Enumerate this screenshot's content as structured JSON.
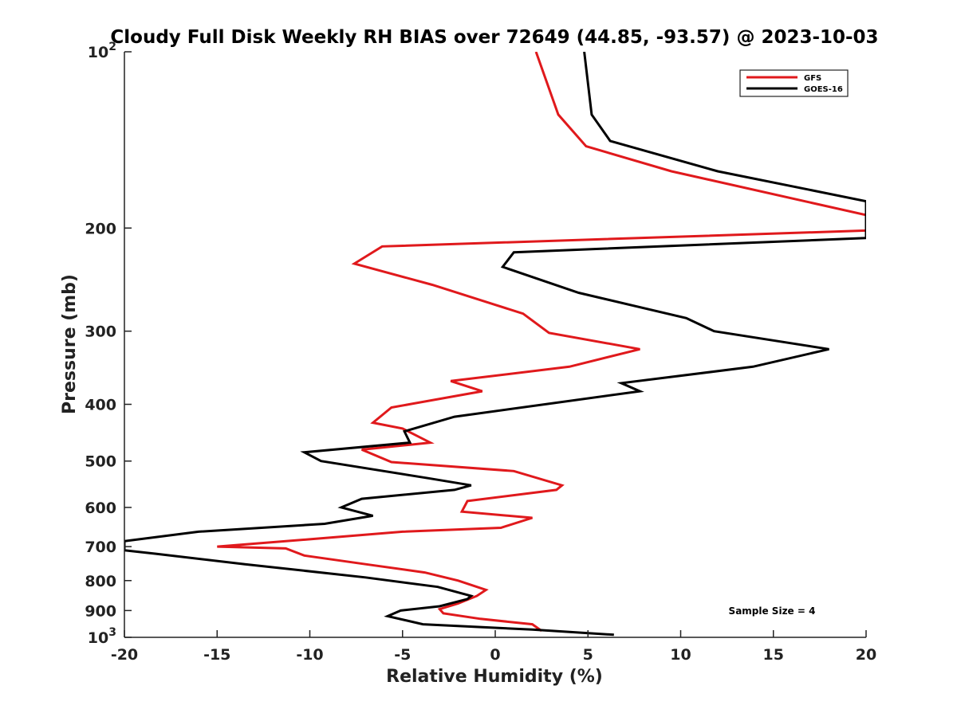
{
  "chart_data": {
    "type": "line",
    "title": "Cloudy Full Disk Weekly RH BIAS over 72649 (44.85, -93.57) @ 2023-10-03",
    "xlabel": "Relative Humidity (%)",
    "ylabel": "Pressure (mb)",
    "xlim": [
      -20,
      20
    ],
    "ylim": [
      1000,
      100
    ],
    "yscale": "log",
    "grid": false,
    "x_ticks": [
      -20,
      -15,
      -10,
      -5,
      0,
      5,
      10,
      15,
      20
    ],
    "x_tick_labels": [
      "-20",
      "-15",
      "-10",
      "-5",
      "0",
      "5",
      "10",
      "15",
      "20"
    ],
    "y_ticks": [
      100,
      200,
      300,
      400,
      500,
      600,
      700,
      800,
      900,
      1000
    ],
    "y_tick_labels": [
      {
        "base": "10",
        "exp": "2"
      },
      {
        "base": "200",
        "exp": ""
      },
      {
        "base": "300",
        "exp": ""
      },
      {
        "base": "400",
        "exp": ""
      },
      {
        "base": "500",
        "exp": ""
      },
      {
        "base": "600",
        "exp": ""
      },
      {
        "base": "700",
        "exp": ""
      },
      {
        "base": "800",
        "exp": ""
      },
      {
        "base": "900",
        "exp": ""
      },
      {
        "base": "10",
        "exp": "3"
      }
    ],
    "legend_position": "top-right",
    "annotation": "Sample Size = 4",
    "series": [
      {
        "name": "GFS",
        "color": "#e0191c",
        "points": [
          [
            2.5,
            975
          ],
          [
            2.0,
            950
          ],
          [
            -0.8,
            930
          ],
          [
            -2.8,
            910
          ],
          [
            -3.0,
            895
          ],
          [
            -2.0,
            875
          ],
          [
            -1.0,
            850
          ],
          [
            -0.5,
            830
          ],
          [
            -2.0,
            800
          ],
          [
            -3.8,
            775
          ],
          [
            -7.0,
            750
          ],
          [
            -10.3,
            725
          ],
          [
            -11.3,
            705
          ],
          [
            -15.0,
            700
          ],
          [
            -10.0,
            680
          ],
          [
            -5.0,
            660
          ],
          [
            0.3,
            650
          ],
          [
            2.0,
            625
          ],
          [
            -1.8,
            610
          ],
          [
            -1.5,
            585
          ],
          [
            3.3,
            560
          ],
          [
            3.6,
            550
          ],
          [
            1.0,
            520
          ],
          [
            -5.6,
            502
          ],
          [
            -7.2,
            478
          ],
          [
            -3.5,
            465
          ],
          [
            -5.0,
            440
          ],
          [
            -6.6,
            430
          ],
          [
            -5.6,
            405
          ],
          [
            -0.7,
            380
          ],
          [
            -2.4,
            365
          ],
          [
            4.0,
            345
          ],
          [
            7.8,
            322
          ],
          [
            2.9,
            302
          ],
          [
            1.5,
            280
          ],
          [
            -3.4,
            250
          ],
          [
            -7.6,
            230
          ],
          [
            -6.1,
            215
          ],
          [
            20.0,
            202
          ],
          [
            20.0,
            190
          ],
          [
            9.5,
            160
          ],
          [
            4.9,
            145
          ],
          [
            3.4,
            128
          ],
          [
            2.2,
            100
          ]
        ]
      },
      {
        "name": "GOES-16",
        "color": "#000000",
        "points": [
          [
            6.4,
            990
          ],
          [
            2.0,
            970
          ],
          [
            -3.9,
            950
          ],
          [
            -5.8,
            920
          ],
          [
            -5.1,
            900
          ],
          [
            -3.0,
            885
          ],
          [
            -1.5,
            860
          ],
          [
            -1.3,
            850
          ],
          [
            -3.1,
            820
          ],
          [
            -7.0,
            790
          ],
          [
            -13.5,
            750
          ],
          [
            -18.3,
            720
          ],
          [
            -20.0,
            710
          ],
          [
            -20.0,
            685
          ],
          [
            -16.0,
            660
          ],
          [
            -9.2,
            640
          ],
          [
            -6.6,
            620
          ],
          [
            -8.3,
            600
          ],
          [
            -7.2,
            580
          ],
          [
            -2.2,
            560
          ],
          [
            -1.3,
            550
          ],
          [
            -3.6,
            535
          ],
          [
            -9.4,
            500
          ],
          [
            -10.3,
            483
          ],
          [
            -4.6,
            465
          ],
          [
            -4.9,
            445
          ],
          [
            -2.2,
            420
          ],
          [
            7.8,
            380
          ],
          [
            6.8,
            368
          ],
          [
            13.9,
            345
          ],
          [
            18.0,
            322
          ],
          [
            11.8,
            300
          ],
          [
            10.3,
            285
          ],
          [
            4.5,
            258
          ],
          [
            0.4,
            233
          ],
          [
            1.0,
            220
          ],
          [
            20.0,
            208
          ],
          [
            20.0,
            180
          ],
          [
            12.0,
            160
          ],
          [
            6.2,
            142
          ],
          [
            5.2,
            128
          ],
          [
            4.8,
            100
          ]
        ]
      }
    ]
  }
}
